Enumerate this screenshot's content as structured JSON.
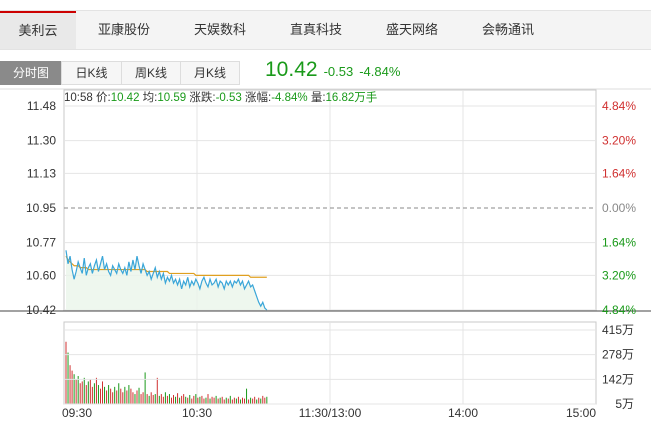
{
  "stock_tabs": [
    {
      "label": "美利云",
      "active": true
    },
    {
      "label": "亚康股份",
      "active": false
    },
    {
      "label": "天娱数科",
      "active": false
    },
    {
      "label": "直真科技",
      "active": false
    },
    {
      "label": "盛天网络",
      "active": false
    },
    {
      "label": "会畅通讯",
      "active": false
    }
  ],
  "period_tabs": [
    {
      "label": "分时图",
      "active": true
    },
    {
      "label": "日K线",
      "active": false
    },
    {
      "label": "周K线",
      "active": false
    },
    {
      "label": "月K线",
      "active": false
    }
  ],
  "quote": {
    "price": "10.42",
    "change": "-0.53",
    "change_pct": "-4.84%",
    "color": "#1a9a1a"
  },
  "info_bar": {
    "time": "10:58",
    "price_label": "价:",
    "price": "10.42",
    "avg_label": "均:",
    "avg": "10.59",
    "change_label": "涨跌:",
    "change": "-0.53",
    "pct_label": "涨幅:",
    "pct": "-4.84%",
    "vol_label": "量:",
    "vol": "16.82万手"
  },
  "chart_data": {
    "type": "line",
    "price_ticks": [
      "11.48",
      "11.30",
      "11.13",
      "10.95",
      "10.77",
      "10.60",
      "10.42"
    ],
    "price_range": [
      10.42,
      11.48
    ],
    "prev_close": 10.95,
    "pct_ticks": [
      {
        "label": "4.84%",
        "color": "#d03030"
      },
      {
        "label": "3.20%",
        "color": "#d03030"
      },
      {
        "label": "1.64%",
        "color": "#d03030"
      },
      {
        "label": "0.00%",
        "color": "#888888"
      },
      {
        "label": "1.64%",
        "color": "#1a9a1a"
      },
      {
        "label": "3.20%",
        "color": "#1a9a1a"
      },
      {
        "label": "4.84%",
        "color": "#1a9a1a"
      }
    ],
    "volume_ticks": [
      "415万",
      "278万",
      "142万",
      "5万"
    ],
    "volume_range": [
      5,
      415
    ],
    "time_ticks": [
      "09:30",
      "10:30",
      "11:30/13:00",
      "14:00",
      "15:00"
    ],
    "total_minutes": 240,
    "series": [
      {
        "name": "价",
        "color": "#3aa6d8",
        "values": [
          10.73,
          10.66,
          10.7,
          10.63,
          10.58,
          10.62,
          10.67,
          10.64,
          10.61,
          10.69,
          10.6,
          10.64,
          10.66,
          10.61,
          10.65,
          10.68,
          10.62,
          10.66,
          10.7,
          10.63,
          10.66,
          10.62,
          10.6,
          10.65,
          10.63,
          10.61,
          10.66,
          10.63,
          10.61,
          10.64,
          10.6,
          10.67,
          10.62,
          10.68,
          10.63,
          10.7,
          10.65,
          10.61,
          10.66,
          10.63,
          10.6,
          10.62,
          10.58,
          10.61,
          10.64,
          10.59,
          10.62,
          10.58,
          10.61,
          10.56,
          10.59,
          10.57,
          10.6,
          10.56,
          10.58,
          10.55,
          10.58,
          10.53,
          10.57,
          10.55,
          10.59,
          10.54,
          10.57,
          10.55,
          10.58,
          10.56,
          10.53,
          10.57,
          10.59,
          10.56,
          10.54,
          10.58,
          10.55,
          10.56,
          10.58,
          10.54,
          10.57,
          10.56,
          10.53,
          10.57,
          10.55,
          10.57,
          10.54,
          10.57,
          10.56,
          10.58,
          10.55,
          10.57,
          10.53,
          10.55,
          10.57,
          10.54,
          10.55,
          10.52,
          10.49,
          10.46,
          10.44,
          10.46,
          10.43,
          10.42
        ]
      },
      {
        "name": "均",
        "color": "#e0a020",
        "values": [
          10.7,
          10.68,
          10.67,
          10.66,
          10.65,
          10.65,
          10.65,
          10.64,
          10.64,
          10.64,
          10.64,
          10.63,
          10.63,
          10.63,
          10.63,
          10.63,
          10.63,
          10.63,
          10.63,
          10.63,
          10.63,
          10.63,
          10.63,
          10.63,
          10.63,
          10.63,
          10.63,
          10.63,
          10.63,
          10.63,
          10.63,
          10.63,
          10.63,
          10.63,
          10.63,
          10.63,
          10.63,
          10.63,
          10.63,
          10.63,
          10.62,
          10.62,
          10.62,
          10.62,
          10.62,
          10.62,
          10.62,
          10.62,
          10.62,
          10.62,
          10.62,
          10.61,
          10.61,
          10.61,
          10.61,
          10.61,
          10.61,
          10.61,
          10.61,
          10.61,
          10.61,
          10.61,
          10.61,
          10.61,
          10.6,
          10.6,
          10.6,
          10.6,
          10.6,
          10.6,
          10.6,
          10.6,
          10.6,
          10.6,
          10.6,
          10.6,
          10.6,
          10.6,
          10.6,
          10.6,
          10.6,
          10.6,
          10.6,
          10.6,
          10.6,
          10.6,
          10.6,
          10.6,
          10.6,
          10.6,
          10.6,
          10.59,
          10.59,
          10.59,
          10.59,
          10.59,
          10.59,
          10.59,
          10.59,
          10.59
        ]
      }
    ],
    "volume": [
      350,
      290,
      220,
      190,
      170,
      140,
      160,
      120,
      130,
      150,
      110,
      130,
      140,
      100,
      120,
      150,
      110,
      90,
      130,
      100,
      80,
      110,
      90,
      70,
      100,
      80,
      120,
      90,
      70,
      100,
      80,
      110,
      90,
      70,
      60,
      80,
      95,
      60,
      70,
      180,
      60,
      50,
      70,
      55,
      60,
      150,
      50,
      60,
      45,
      70,
      50,
      60,
      40,
      55,
      45,
      65,
      40,
      50,
      60,
      45,
      40,
      55,
      35,
      50,
      60,
      40,
      45,
      50,
      35,
      40,
      60,
      35,
      45,
      40,
      50,
      35,
      40,
      45,
      30,
      40,
      35,
      50,
      30,
      40,
      35,
      45,
      30,
      40,
      35,
      90,
      30,
      40,
      35,
      45,
      30,
      40,
      35,
      50,
      40,
      45
    ],
    "volume_colors": [
      "#d03030",
      "#1a9a1a",
      "#d03030",
      "#d03030",
      "#1a9a1a"
    ],
    "grid": true
  }
}
